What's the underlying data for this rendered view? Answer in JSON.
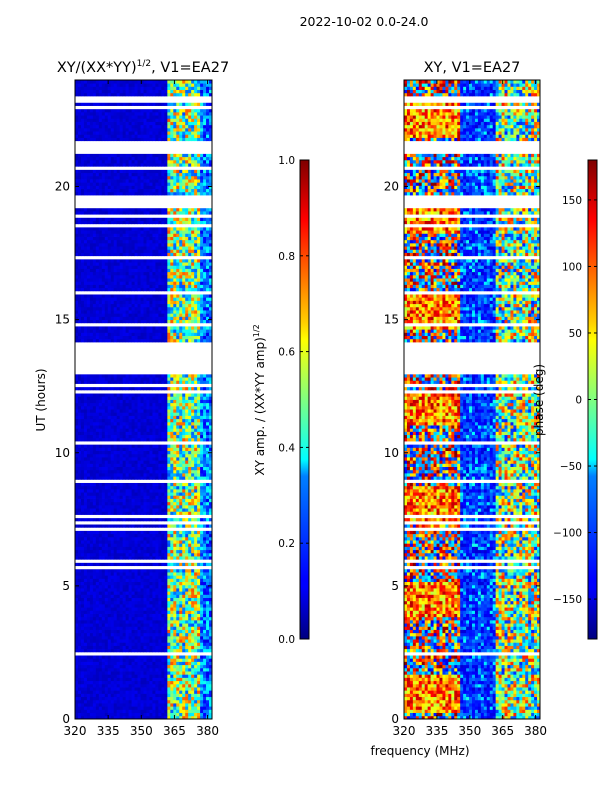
{
  "figure_title": "2022-10-02 0.0-24.0",
  "xlabel_shared": "frequency (MHz)",
  "colors": {
    "frame": "#000000",
    "gap": "#ffffff"
  },
  "chart_data": [
    {
      "type": "heatmap",
      "title_text": "XY/(XX*YY)",
      "title_exp": "1/2",
      "title_suffix": ", V1=EA27",
      "xlabel": "frequency (MHz)",
      "ylabel": "UT (hours)",
      "xlim": [
        320,
        382
      ],
      "ylim": [
        0,
        24
      ],
      "xticks": [
        320,
        335,
        350,
        365,
        380
      ],
      "yticks": [
        0,
        5,
        10,
        15,
        20
      ],
      "colormap": "jet",
      "colorbar": {
        "label_main": "XY amp. / (XX*YY amp)",
        "label_exp": "1/2",
        "range": [
          0.0,
          1.0
        ],
        "ticks": [
          "0.0",
          "0.2",
          "0.4",
          "0.6",
          "0.8",
          "1.0"
        ]
      }
    },
    {
      "type": "heatmap",
      "title_text": "XY, V1=EA27",
      "xlabel": "frequency (MHz)",
      "ylabel": "",
      "xlim": [
        320,
        382
      ],
      "ylim": [
        0,
        24
      ],
      "xticks": [
        320,
        335,
        350,
        365,
        380
      ],
      "yticks": [
        0,
        5,
        10,
        15,
        20
      ],
      "colormap": "jet",
      "colorbar": {
        "label_main": "phase (deg)",
        "range": [
          -180,
          180
        ],
        "ticks": [
          "-150",
          "-100",
          "-50",
          "0",
          "50",
          "100",
          "150"
        ]
      }
    }
  ]
}
